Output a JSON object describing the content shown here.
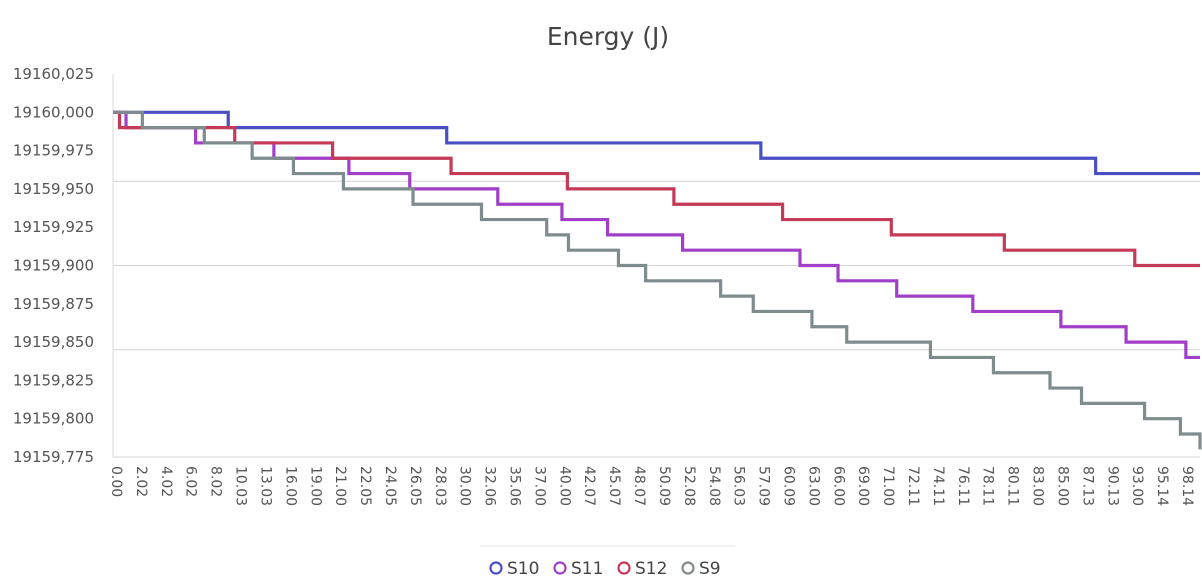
{
  "chart_data": {
    "type": "line",
    "title": "Energy (J)",
    "xlabel": "",
    "ylabel": "",
    "x_range": [
      0,
      100
    ],
    "ylim": [
      19159.775,
      19160.025
    ],
    "y_ticks": [
      "19160,025",
      "19160,000",
      "19159,975",
      "19159,950",
      "19159,925",
      "19159,900",
      "19159,875",
      "19159,850",
      "19159,825",
      "19159,800",
      "19159,775"
    ],
    "x_ticks": [
      "0.00",
      "2.02",
      "4.02",
      "6.02",
      "8.02",
      "10.03",
      "13.03",
      "16.00",
      "19.00",
      "21.00",
      "22.05",
      "24.05",
      "26.05",
      "28.03",
      "30.00",
      "32.06",
      "35.06",
      "37.00",
      "40.00",
      "42.07",
      "45.07",
      "48.07",
      "50.09",
      "52.08",
      "54.08",
      "56.03",
      "57.09",
      "60.09",
      "63.00",
      "66.00",
      "69.00",
      "71.00",
      "72.11",
      "74.11",
      "76.11",
      "78.11",
      "80.11",
      "83.00",
      "85.00",
      "87.13",
      "90.13",
      "93.00",
      "95.14",
      "98.14"
    ],
    "grid": "horizontal (sparse)",
    "legend": "bottom-center",
    "step": true,
    "series": [
      {
        "name": "S10",
        "color": "#4a4fc4",
        "points": [
          [
            0,
            19160.0
          ],
          [
            10.6,
            19159.99
          ],
          [
            30.7,
            19159.98
          ],
          [
            59.6,
            19159.97
          ],
          [
            90.4,
            19159.96
          ],
          [
            100,
            19159.96
          ]
        ]
      },
      {
        "name": "S11",
        "color": "#a23fc8",
        "points": [
          [
            0,
            19160.0
          ],
          [
            1.2,
            19159.99
          ],
          [
            7.6,
            19159.98
          ],
          [
            14.8,
            19159.97
          ],
          [
            21.7,
            19159.96
          ],
          [
            27.3,
            19159.95
          ],
          [
            35.4,
            19159.94
          ],
          [
            41.3,
            19159.93
          ],
          [
            45.5,
            19159.92
          ],
          [
            52.4,
            19159.91
          ],
          [
            63.2,
            19159.9
          ],
          [
            66.7,
            19159.89
          ],
          [
            72.1,
            19159.88
          ],
          [
            79.1,
            19159.87
          ],
          [
            87.2,
            19159.86
          ],
          [
            93.2,
            19159.85
          ],
          [
            98.7,
            19159.84
          ],
          [
            100,
            19159.84
          ]
        ]
      },
      {
        "name": "S12",
        "color": "#c43a57",
        "points": [
          [
            0,
            19160.0
          ],
          [
            0.6,
            19159.99
          ],
          [
            11.2,
            19159.98
          ],
          [
            20.2,
            19159.97
          ],
          [
            31.1,
            19159.96
          ],
          [
            41.8,
            19159.95
          ],
          [
            51.6,
            19159.94
          ],
          [
            61.6,
            19159.93
          ],
          [
            71.6,
            19159.92
          ],
          [
            82.0,
            19159.91
          ],
          [
            94.0,
            19159.9
          ],
          [
            100,
            19159.9
          ]
        ]
      },
      {
        "name": "S9",
        "color": "#7f8c8d",
        "points": [
          [
            0,
            19160.0
          ],
          [
            2.7,
            19159.99
          ],
          [
            8.4,
            19159.98
          ],
          [
            12.8,
            19159.97
          ],
          [
            16.6,
            19159.96
          ],
          [
            21.2,
            19159.95
          ],
          [
            27.6,
            19159.94
          ],
          [
            33.9,
            19159.93
          ],
          [
            39.9,
            19159.92
          ],
          [
            41.9,
            19159.91
          ],
          [
            46.5,
            19159.9
          ],
          [
            49.0,
            19159.89
          ],
          [
            55.9,
            19159.88
          ],
          [
            58.9,
            19159.87
          ],
          [
            64.3,
            19159.86
          ],
          [
            67.5,
            19159.85
          ],
          [
            75.2,
            19159.84
          ],
          [
            81.0,
            19159.83
          ],
          [
            86.2,
            19159.82
          ],
          [
            89.1,
            19159.81
          ],
          [
            94.9,
            19159.8
          ],
          [
            98.2,
            19159.79
          ],
          [
            100,
            19159.78
          ]
        ]
      }
    ]
  }
}
